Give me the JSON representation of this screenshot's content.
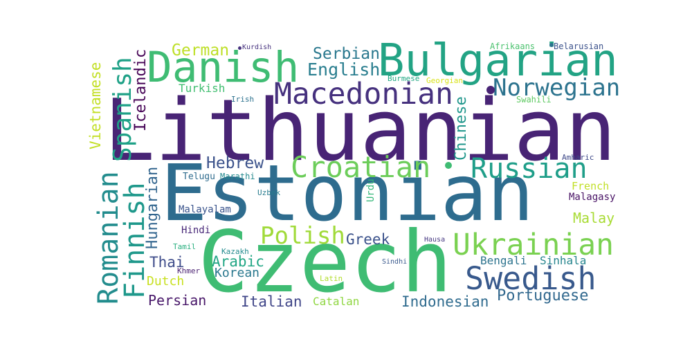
{
  "words": [
    {
      "text": "Lithuanian",
      "color": "#482475"
    },
    {
      "text": "Estonian",
      "color": "#2e6c8e"
    },
    {
      "text": "Czech",
      "color": "#3fbc73"
    },
    {
      "text": "Bulgarian",
      "color": "#22a384"
    },
    {
      "text": "Danish",
      "color": "#3fbc73"
    },
    {
      "text": "Macedonian",
      "color": "#46317e"
    },
    {
      "text": "Norwegian",
      "color": "#2c738e"
    },
    {
      "text": "Croatian",
      "color": "#6ccd5a"
    },
    {
      "text": "Russian",
      "color": "#1f9e89"
    },
    {
      "text": "Ukrainian",
      "color": "#7ad151"
    },
    {
      "text": "Swedish",
      "color": "#38598c"
    },
    {
      "text": "Romanian",
      "color": "#228c8d"
    },
    {
      "text": "Finnish",
      "color": "#1f988b"
    },
    {
      "text": "Spanish",
      "color": "#1fa187"
    },
    {
      "text": "Polish",
      "color": "#a0da39"
    },
    {
      "text": "Hebrew",
      "color": "#3b528b"
    },
    {
      "text": "English",
      "color": "#287d8e"
    },
    {
      "text": "German",
      "color": "#bddf26"
    },
    {
      "text": "Serbian",
      "color": "#2a788e"
    },
    {
      "text": "Icelandic",
      "color": "#440154"
    },
    {
      "text": "Vietnamese",
      "color": "#c2df23"
    },
    {
      "text": "Chinese",
      "color": "#1f968b"
    },
    {
      "text": "Hungarian",
      "color": "#32658e"
    },
    {
      "text": "Portuguese",
      "color": "#31688e"
    },
    {
      "text": "Indonesian",
      "color": "#2f6b8e"
    },
    {
      "text": "Italian",
      "color": "#404688"
    },
    {
      "text": "Persian",
      "color": "#481769"
    },
    {
      "text": "Arabic",
      "color": "#21a685"
    },
    {
      "text": "Korean",
      "color": "#2a788e"
    },
    {
      "text": "Greek",
      "color": "#3b528b"
    },
    {
      "text": "Thai",
      "color": "#3e4c8a"
    },
    {
      "text": "Dutch",
      "color": "#c8e020"
    },
    {
      "text": "Malay",
      "color": "#a8db34"
    },
    {
      "text": "Turkish",
      "color": "#42be71"
    },
    {
      "text": "Catalan",
      "color": "#90d743"
    },
    {
      "text": "Bengali",
      "color": "#2c738e"
    },
    {
      "text": "Sinhala",
      "color": "#25858e"
    },
    {
      "text": "French",
      "color": "#c0df25"
    },
    {
      "text": "Hindi",
      "color": "#482878"
    },
    {
      "text": "Malayalam",
      "color": "#3a548c"
    },
    {
      "text": "Malagasy",
      "color": "#471164"
    },
    {
      "text": "Urdu",
      "color": "#35b779"
    },
    {
      "text": "Telugu",
      "color": "#2f6c8e"
    },
    {
      "text": "Marathi",
      "color": "#23898e"
    },
    {
      "text": "Uzbek",
      "color": "#287c8e"
    },
    {
      "text": "Kazakh",
      "color": "#238a8d"
    },
    {
      "text": "Tamil",
      "color": "#29af7f"
    },
    {
      "text": "Khmer",
      "color": "#481f70"
    },
    {
      "text": "Latin",
      "color": "#b2dd2d"
    },
    {
      "text": "Sindhi",
      "color": "#38588c"
    },
    {
      "text": "Hausa",
      "color": "#453781"
    },
    {
      "text": "Amharic",
      "color": "#3e4989"
    },
    {
      "text": "Swahili",
      "color": "#5ec962"
    },
    {
      "text": "Irish",
      "color": "#2c718e"
    },
    {
      "text": "Burmese",
      "color": "#22a884"
    },
    {
      "text": "Georgian",
      "color": "#d8e219"
    },
    {
      "text": "Kurdish",
      "color": "#46327e"
    },
    {
      "text": "Afrikaans",
      "color": "#4ac16d"
    },
    {
      "text": "Belarusian",
      "color": "#3b518b"
    }
  ]
}
